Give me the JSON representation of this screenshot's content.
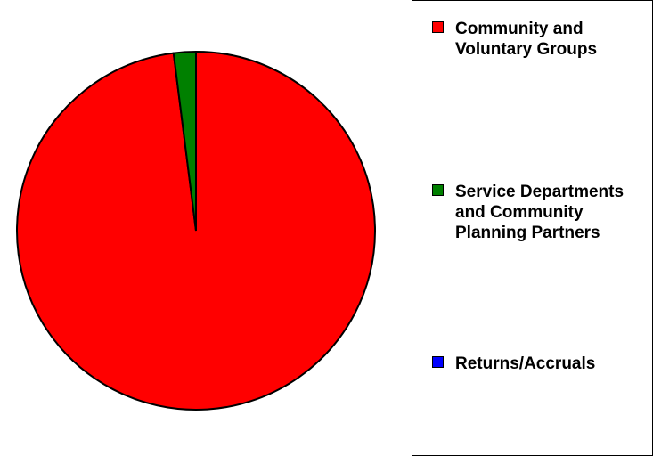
{
  "chart_data": {
    "type": "pie",
    "categories": [
      "Community and Voluntary Groups",
      "Service Departments and Community Planning Partners",
      "Returns/Accruals"
    ],
    "values": [
      98,
      2,
      0
    ],
    "colors": [
      "#ff0000",
      "#008000",
      "#0000ff"
    ]
  }
}
